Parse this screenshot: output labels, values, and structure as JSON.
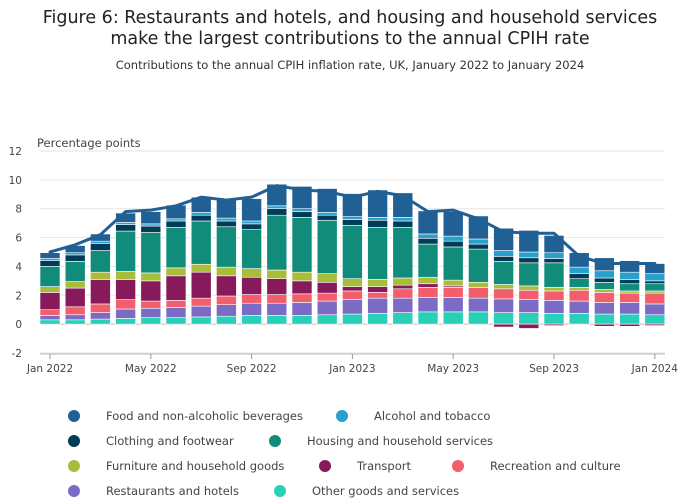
{
  "title": "Figure 6: Restaurants and hotels, and housing and household services make the largest contributions to the annual CPIH rate",
  "title_line1": "Figure 6: Restaurants and hotels, and housing and household services",
  "title_line2": "make the largest contributions to the annual CPIH rate",
  "subtitle": "Contributions to the annual CPIH inflation rate, UK, January 2022 to January 2024",
  "chart_data": {
    "type": "bar",
    "stacked": true,
    "ylabel": "Percentage points",
    "ylim": [
      -2,
      12
    ],
    "yticks": [
      -2,
      0,
      2,
      4,
      6,
      8,
      10,
      12
    ],
    "grid": true,
    "x_tick_labels": [
      "Jan 2022",
      "May 2022",
      "Sep 2022",
      "Jan 2023",
      "May 2023",
      "Sep 2023",
      "Jan 2024"
    ],
    "categories": [
      "Jan 2022",
      "Feb 2022",
      "Mar 2022",
      "Apr 2022",
      "May 2022",
      "Jun 2022",
      "Jul 2022",
      "Aug 2022",
      "Sep 2022",
      "Oct 2022",
      "Nov 2022",
      "Dec 2022",
      "Jan 2023",
      "Feb 2023",
      "Mar 2023",
      "Apr 2023",
      "May 2023",
      "Jun 2023",
      "Jul 2023",
      "Aug 2023",
      "Sep 2023",
      "Oct 2023",
      "Nov 2023",
      "Dec 2023",
      "Jan 2024"
    ],
    "legend_position": "bottom",
    "series": [
      {
        "name": "Other goods and services",
        "color": "#28d0b8",
        "values": [
          0.3,
          0.3,
          0.35,
          0.4,
          0.45,
          0.45,
          0.5,
          0.55,
          0.6,
          0.6,
          0.6,
          0.65,
          0.7,
          0.75,
          0.8,
          0.85,
          0.85,
          0.85,
          0.8,
          0.8,
          0.75,
          0.75,
          0.7,
          0.7,
          0.65
        ]
      },
      {
        "name": "Restaurants and hotels",
        "color": "#7b6bc4",
        "values": [
          0.3,
          0.35,
          0.45,
          0.65,
          0.65,
          0.7,
          0.75,
          0.8,
          0.85,
          0.85,
          0.9,
          0.95,
          1.0,
          1.05,
          1.0,
          1.0,
          1.0,
          0.95,
          0.95,
          0.9,
          0.9,
          0.85,
          0.8,
          0.8,
          0.75
        ]
      },
      {
        "name": "Recreation and culture",
        "color": "#f25e6b",
        "values": [
          0.4,
          0.55,
          0.6,
          0.65,
          0.5,
          0.5,
          0.55,
          0.6,
          0.6,
          0.6,
          0.6,
          0.55,
          0.6,
          0.4,
          0.65,
          0.7,
          0.7,
          0.75,
          0.7,
          0.65,
          0.65,
          0.75,
          0.7,
          0.65,
          0.75
        ]
      },
      {
        "name": "Transport",
        "color": "#871a5b",
        "values": [
          1.2,
          1.3,
          1.7,
          1.4,
          1.4,
          1.7,
          1.8,
          1.4,
          1.2,
          1.1,
          0.9,
          0.75,
          0.3,
          0.4,
          0.25,
          0.25,
          0.1,
          0.0,
          -0.2,
          -0.3,
          -0.1,
          -0.05,
          -0.15,
          -0.15,
          -0.1
        ]
      },
      {
        "name": "Furniture and household goods",
        "color": "#a8bd3a",
        "values": [
          0.4,
          0.45,
          0.5,
          0.55,
          0.55,
          0.55,
          0.55,
          0.6,
          0.6,
          0.6,
          0.6,
          0.6,
          0.55,
          0.5,
          0.5,
          0.45,
          0.4,
          0.35,
          0.3,
          0.3,
          0.25,
          0.2,
          0.2,
          0.15,
          0.15
        ]
      },
      {
        "name": "Housing and household services",
        "color": "#118c7b",
        "values": [
          1.4,
          1.4,
          1.5,
          2.8,
          2.8,
          2.8,
          3.0,
          2.8,
          2.7,
          3.8,
          3.8,
          3.7,
          3.7,
          3.6,
          3.5,
          2.3,
          2.3,
          2.3,
          1.6,
          1.6,
          1.7,
          0.6,
          0.5,
          0.5,
          0.5
        ]
      },
      {
        "name": "Clothing and footwear",
        "color": "#003c57",
        "values": [
          0.4,
          0.45,
          0.5,
          0.45,
          0.45,
          0.45,
          0.4,
          0.4,
          0.4,
          0.45,
          0.4,
          0.35,
          0.4,
          0.5,
          0.45,
          0.4,
          0.4,
          0.35,
          0.35,
          0.35,
          0.3,
          0.35,
          0.3,
          0.3,
          0.2
        ]
      },
      {
        "name": "Alcohol and tobacco",
        "color": "#27a0cc",
        "values": [
          0.15,
          0.15,
          0.15,
          0.15,
          0.15,
          0.15,
          0.2,
          0.2,
          0.2,
          0.2,
          0.2,
          0.2,
          0.2,
          0.2,
          0.25,
          0.3,
          0.35,
          0.35,
          0.4,
          0.4,
          0.4,
          0.45,
          0.5,
          0.5,
          0.5
        ]
      },
      {
        "name": "Food and non-alcoholic beverages",
        "color": "#206095",
        "values": [
          0.4,
          0.5,
          0.5,
          0.65,
          0.85,
          0.95,
          1.05,
          1.25,
          1.55,
          1.5,
          1.55,
          1.65,
          1.6,
          1.9,
          1.7,
          1.6,
          1.7,
          1.6,
          1.55,
          1.5,
          1.2,
          1.0,
          0.9,
          0.8,
          0.7
        ]
      }
    ],
    "total_line": {
      "name": "CPIH",
      "color": "#206095",
      "values": [
        5.0,
        5.5,
        6.2,
        7.8,
        7.9,
        8.2,
        8.8,
        8.6,
        8.8,
        9.6,
        9.3,
        9.2,
        8.8,
        9.2,
        8.9,
        7.8,
        7.9,
        7.3,
        6.4,
        6.3,
        6.3,
        4.7,
        4.2,
        4.2,
        4.2
      ]
    }
  },
  "legend": [
    {
      "label": "Food and non-alcoholic beverages",
      "color": "#206095"
    },
    {
      "label": "Alcohol and tobacco",
      "color": "#27a0cc"
    },
    {
      "label": "Clothing and footwear",
      "color": "#003c57"
    },
    {
      "label": "Housing and household services",
      "color": "#118c7b"
    },
    {
      "label": "Furniture and household goods",
      "color": "#a8bd3a"
    },
    {
      "label": "Transport",
      "color": "#871a5b"
    },
    {
      "label": "Recreation and culture",
      "color": "#f25e6b"
    },
    {
      "label": "Restaurants and hotels",
      "color": "#7b6bc4"
    },
    {
      "label": "Other goods and services",
      "color": "#28d0b8"
    }
  ]
}
